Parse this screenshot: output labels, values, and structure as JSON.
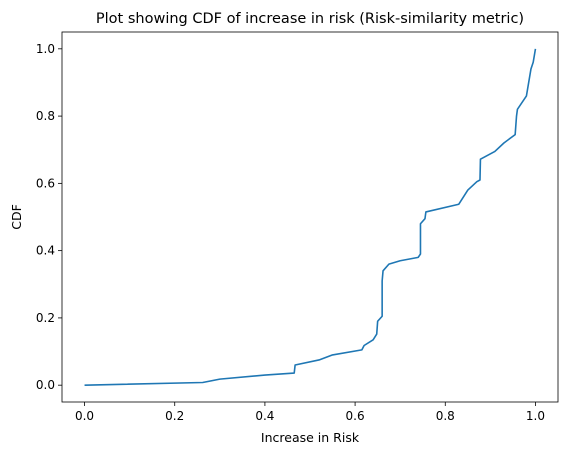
{
  "chart_data": {
    "type": "line",
    "title": "Plot showing CDF of increase in risk (Risk-similarity metric)",
    "xlabel": "Increase in Risk",
    "ylabel": "CDF",
    "xlim": [
      -0.05,
      1.05
    ],
    "ylim": [
      -0.05,
      1.05
    ],
    "x_ticks": [
      0.0,
      0.2,
      0.4,
      0.6,
      0.8,
      1.0
    ],
    "x_tick_labels": [
      "0.0",
      "0.2",
      "0.4",
      "0.6",
      "0.8",
      "1.0"
    ],
    "y_ticks": [
      0.0,
      0.2,
      0.4,
      0.6,
      0.8,
      1.0
    ],
    "y_tick_labels": [
      "0.0",
      "0.2",
      "0.4",
      "0.6",
      "0.8",
      "1.0"
    ],
    "grid": false,
    "legend": false,
    "series": [
      {
        "color": "#1f77b4",
        "x": [
          0.0,
          0.262,
          0.3,
          0.4,
          0.465,
          0.467,
          0.52,
          0.55,
          0.615,
          0.62,
          0.64,
          0.648,
          0.65,
          0.66,
          0.66,
          0.662,
          0.675,
          0.7,
          0.74,
          0.745,
          0.745,
          0.755,
          0.757,
          0.83,
          0.85,
          0.87,
          0.877,
          0.878,
          0.91,
          0.93,
          0.955,
          0.958,
          0.96,
          0.98,
          0.99,
          0.995,
          1.0
        ],
        "y": [
          0.0,
          0.008,
          0.018,
          0.03,
          0.036,
          0.06,
          0.075,
          0.09,
          0.105,
          0.118,
          0.135,
          0.152,
          0.19,
          0.205,
          0.31,
          0.34,
          0.36,
          0.37,
          0.38,
          0.39,
          0.48,
          0.495,
          0.515,
          0.538,
          0.58,
          0.605,
          0.61,
          0.672,
          0.695,
          0.72,
          0.745,
          0.8,
          0.82,
          0.86,
          0.94,
          0.96,
          1.0
        ]
      }
    ]
  }
}
